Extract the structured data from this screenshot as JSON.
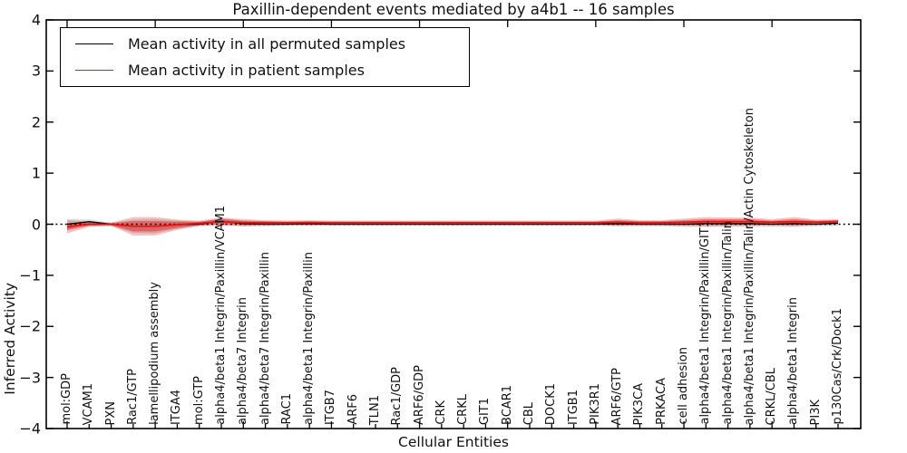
{
  "figure": {
    "title": "Paxillin-dependent events mediated by a4b1 -- 16 samples",
    "background": "#ffffff"
  },
  "legend": {
    "position": "upper left",
    "items": [
      {
        "label": "Mean activity in all permuted samples",
        "color": "#000000"
      },
      {
        "label": "Mean activity in patient samples",
        "color": "#ee1111"
      }
    ]
  },
  "chart_data": {
    "type": "line",
    "title": "Paxillin-dependent events mediated by a4b1 -- 16 samples",
    "xlabel": "Cellular Entities",
    "ylabel": "Inferred Activity",
    "ylim": [
      -4,
      4
    ],
    "yticks": [
      4,
      3,
      2,
      1,
      0,
      -1,
      -2,
      -3,
      -4
    ],
    "ytick_labels": [
      "4",
      "3",
      "2",
      "1",
      "0",
      "−1",
      "−2",
      "−3",
      "−4"
    ],
    "grid": false,
    "legend_position": "upper left",
    "zero_line": {
      "show": true,
      "style": "dotted",
      "color": "#000000",
      "y": 0
    },
    "categories": [
      "mol:GDP",
      "VCAM1",
      "PXN",
      "Rac1/GTP",
      "lamellipodium assembly",
      "ITGA4",
      "mol:GTP",
      "alpha4/beta1 Integrin/Paxillin/VCAM1",
      "alpha4/beta7 Integrin",
      "alpha4/beta7 Integrin/Paxillin",
      "RAC1",
      "alpha4/beta1 Integrin/Paxillin",
      "ITGB7",
      "ARF6",
      "TLN1",
      "Rac1/GDP",
      "ARF6/GDP",
      "CRK",
      "CRKL",
      "GIT1",
      "BCAR1",
      "CBL",
      "DOCK1",
      "ITGB1",
      "PIK3R1",
      "ARF6/GTP",
      "PIK3CA",
      "PRKACA",
      "cell adhesion",
      "alpha4/beta1 Integrin/Paxillin/GIT1",
      "alpha4/beta1 Integrin/Paxillin/Talin",
      "alpha4/beta1 Integrin/Paxillin/Talin/Actin Cytoskeleton",
      "CRKL/CBL",
      "alpha4/beta1 Integrin",
      "PI3K",
      "p130Cas/Crk/Dock1"
    ],
    "series": [
      {
        "name": "Mean activity in all permuted samples",
        "color": "#000000",
        "width": 1.3,
        "values": [
          0.0,
          0.05,
          0.0,
          -0.04,
          -0.04,
          -0.01,
          0.0,
          0.06,
          0.01,
          0.0,
          0.0,
          0.01,
          0.0,
          0.0,
          0.0,
          0.0,
          0.0,
          0.0,
          0.0,
          0.0,
          0.0,
          0.0,
          0.0,
          0.0,
          0.0,
          0.01,
          0.0,
          0.0,
          0.0,
          0.01,
          0.01,
          0.01,
          0.0,
          0.01,
          0.0,
          0.02
        ]
      },
      {
        "name": "Mean activity in patient samples",
        "color": "#ee1111",
        "width": 1.8,
        "values": [
          -0.05,
          0.0,
          0.0,
          -0.04,
          -0.04,
          -0.01,
          0.02,
          0.05,
          0.03,
          0.03,
          0.03,
          0.03,
          0.03,
          0.03,
          0.03,
          0.03,
          0.03,
          0.03,
          0.03,
          0.03,
          0.03,
          0.03,
          0.03,
          0.03,
          0.03,
          0.04,
          0.03,
          0.03,
          0.04,
          0.05,
          0.05,
          0.05,
          0.04,
          0.05,
          0.04,
          0.05
        ]
      }
    ],
    "bands": [
      {
        "name": "permuted-samples-range",
        "center_series": 0,
        "color": "#9a9a9a",
        "opacity": 0.4,
        "half_widths": [
          0.1,
          0.04,
          0.03,
          0.13,
          0.14,
          0.08,
          0.04,
          0.06,
          0.05,
          0.04,
          0.03,
          0.04,
          0.03,
          0.03,
          0.03,
          0.03,
          0.03,
          0.03,
          0.03,
          0.03,
          0.03,
          0.03,
          0.03,
          0.03,
          0.03,
          0.05,
          0.04,
          0.04,
          0.05,
          0.06,
          0.06,
          0.06,
          0.05,
          0.06,
          0.04,
          0.05
        ]
      },
      {
        "name": "patient-samples-range-outer",
        "center_series": 1,
        "color": "#e03131",
        "opacity": 0.3,
        "half_widths": [
          0.13,
          0.05,
          0.03,
          0.18,
          0.18,
          0.1,
          0.05,
          0.08,
          0.07,
          0.05,
          0.04,
          0.05,
          0.04,
          0.04,
          0.04,
          0.04,
          0.04,
          0.04,
          0.04,
          0.04,
          0.04,
          0.04,
          0.04,
          0.04,
          0.04,
          0.07,
          0.05,
          0.05,
          0.07,
          0.09,
          0.08,
          0.08,
          0.06,
          0.09,
          0.05,
          0.05
        ]
      },
      {
        "name": "patient-samples-range-inner",
        "center_series": 1,
        "color": "#d42020",
        "opacity": 0.45,
        "half_widths": [
          0.07,
          0.03,
          0.02,
          0.1,
          0.1,
          0.06,
          0.03,
          0.05,
          0.04,
          0.03,
          0.02,
          0.03,
          0.02,
          0.02,
          0.02,
          0.02,
          0.02,
          0.02,
          0.02,
          0.02,
          0.02,
          0.02,
          0.02,
          0.02,
          0.02,
          0.04,
          0.03,
          0.03,
          0.04,
          0.05,
          0.05,
          0.05,
          0.03,
          0.05,
          0.03,
          0.03
        ]
      }
    ]
  }
}
